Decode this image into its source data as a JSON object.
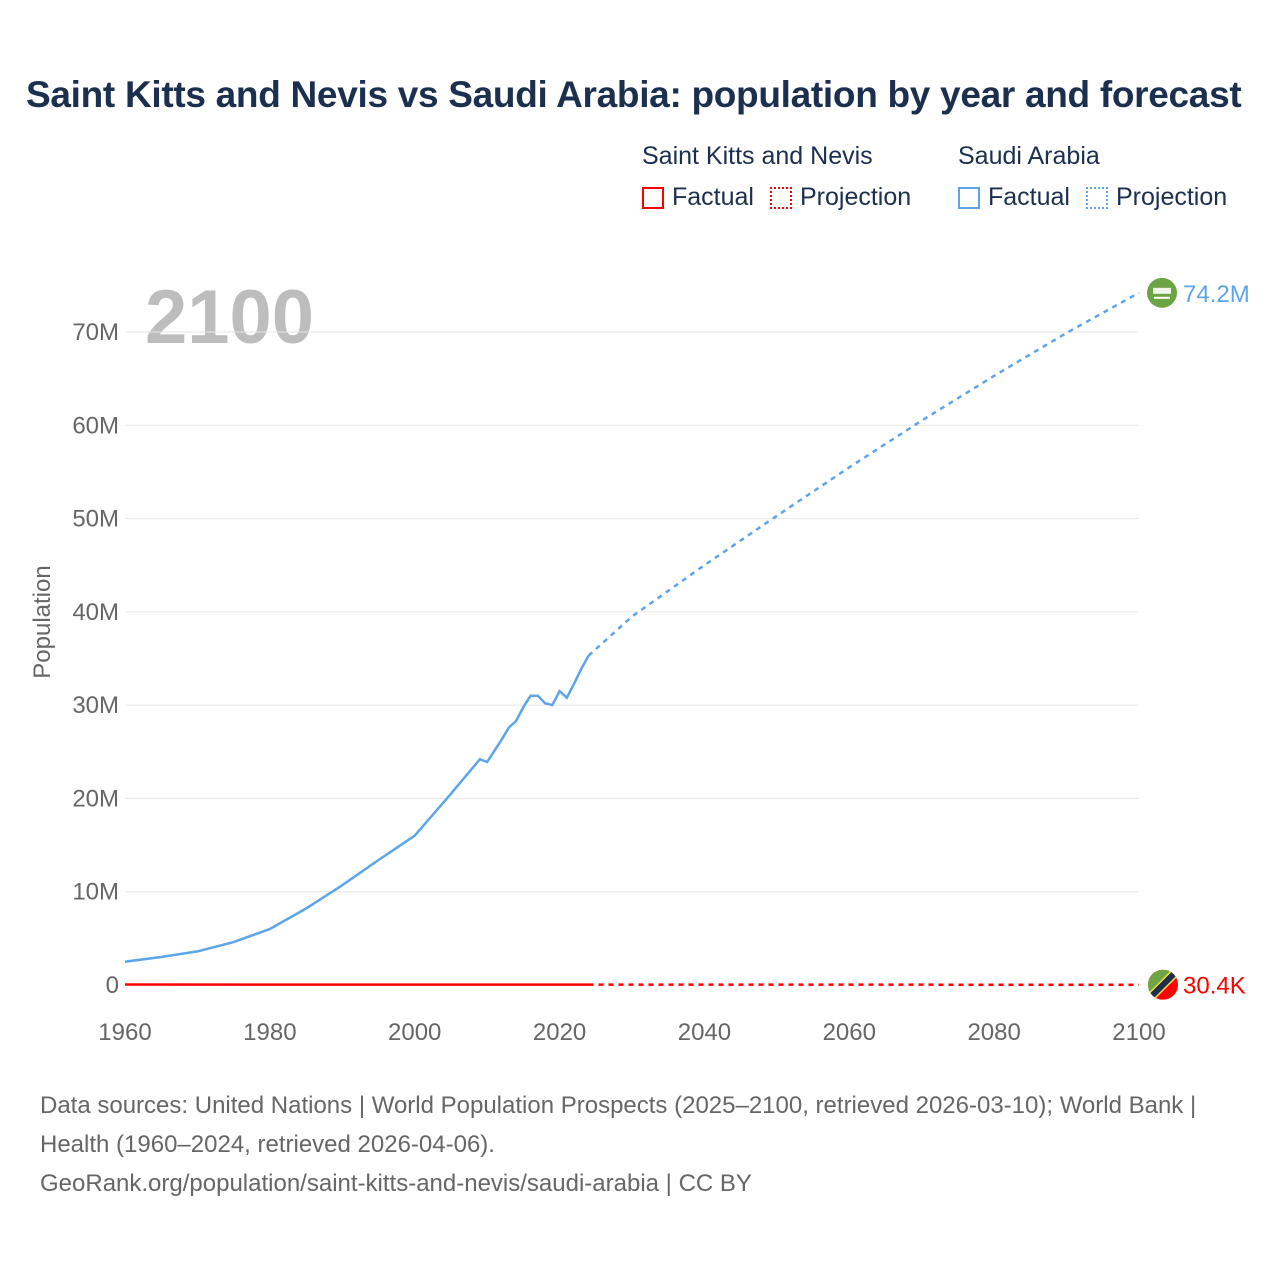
{
  "title": "Saint Kitts and Nevis vs Saudi Arabia: population by year and forecast",
  "legend": [
    {
      "country": "Saint Kitts and Nevis",
      "factual": "Factual",
      "projection": "Projection",
      "color": "#ff0000"
    },
    {
      "country": "Saudi Arabia",
      "factual": "Factual",
      "projection": "Projection",
      "color": "#5ca5ea"
    }
  ],
  "year_watermark": "2100",
  "footer": {
    "sources": "Data sources: United Nations | World Population Prospects (2025–2100, retrieved 2026-03-10); World Bank | Health (1960–2024, retrieved 2026-04-06).",
    "link": "GeoRank.org/population/saint-kitts-and-nevis/saudi-arabia | CC BY"
  },
  "chart_data": {
    "type": "line",
    "title": "Saint Kitts and Nevis vs Saudi Arabia: population by year and forecast",
    "xlabel": "",
    "ylabel": "Population",
    "xlim": [
      1960,
      2100
    ],
    "ylim": [
      0,
      75000000
    ],
    "x_ticks": [
      "1960",
      "1980",
      "2000",
      "2020",
      "2040",
      "2060",
      "2080",
      "2100"
    ],
    "x_tick_values": [
      1960,
      1980,
      2000,
      2020,
      2040,
      2060,
      2080,
      2100
    ],
    "y_ticks": [
      "0",
      "10M",
      "20M",
      "30M",
      "40M",
      "50M",
      "60M",
      "70M"
    ],
    "y_tick_values": [
      0,
      10000000,
      20000000,
      30000000,
      40000000,
      50000000,
      60000000,
      70000000
    ],
    "grid": true,
    "series": [
      {
        "name": "Saudi Arabia",
        "color": "#5ca5ea",
        "end_label": "74.2M",
        "factual": {
          "x": [
            1960,
            1965,
            1970,
            1975,
            1980,
            1985,
            1990,
            1995,
            2000,
            2005,
            2009,
            2010,
            2012,
            2013,
            2014,
            2015,
            2016,
            2017,
            2018,
            2019,
            2020,
            2021,
            2022,
            2023,
            2024
          ],
          "y": [
            2500000,
            3000000,
            3600000,
            4600000,
            6000000,
            8200000,
            10700000,
            13400000,
            16000000,
            20500000,
            24200000,
            23900000,
            26300000,
            27600000,
            28300000,
            29800000,
            31000000,
            31000000,
            30200000,
            30000000,
            31500000,
            30800000,
            32300000,
            33900000,
            35300000
          ]
        },
        "projection": {
          "x": [
            2024,
            2030,
            2040,
            2050,
            2060,
            2070,
            2080,
            2090,
            2100
          ],
          "y": [
            35300000,
            39500000,
            45000000,
            50300000,
            55500000,
            60500000,
            65300000,
            69900000,
            74200000
          ]
        }
      },
      {
        "name": "Saint Kitts and Nevis",
        "color": "#ff0000",
        "end_label": "30.4K",
        "factual": {
          "x": [
            1960,
            1980,
            2000,
            2024
          ],
          "y": [
            51000,
            43000,
            45000,
            47000
          ]
        },
        "projection": {
          "x": [
            2024,
            2050,
            2075,
            2100
          ],
          "y": [
            47000,
            43000,
            37000,
            30400
          ]
        }
      }
    ]
  }
}
